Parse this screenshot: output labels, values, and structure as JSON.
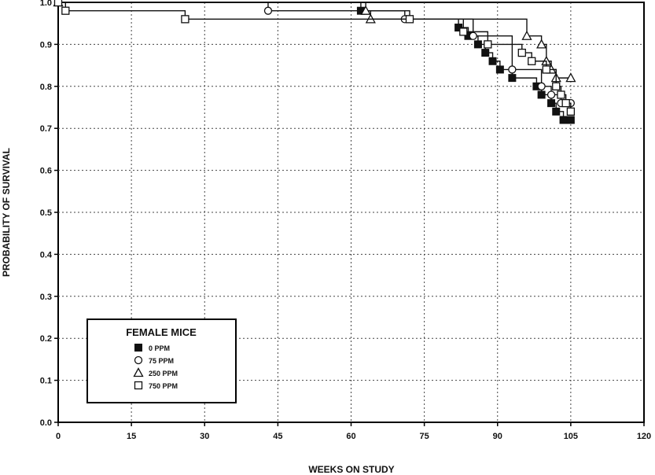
{
  "chart_data": {
    "type": "line",
    "subtype": "step",
    "xlabel": "WEEKS ON STUDY",
    "ylabel": "PROBABILITY OF SURVIVAL",
    "xlim": [
      0,
      120
    ],
    "ylim": [
      0.0,
      1.0
    ],
    "x_ticks": [
      "0",
      "15",
      "30",
      "45",
      "60",
      "75",
      "90",
      "105",
      "120"
    ],
    "y_ticks": [
      "0.0",
      "0.1",
      "0.2",
      "0.3",
      "0.4",
      "0.5",
      "0.6",
      "0.7",
      "0.8",
      "0.9",
      "1.0"
    ],
    "grid": true,
    "legend_title": "FEMALE MICE",
    "legend_position": "lower-left",
    "series": [
      {
        "name": "0 PPM",
        "marker": "filled-square",
        "points": [
          [
            0,
            1.0
          ],
          [
            62,
            0.98
          ],
          [
            72,
            0.96
          ],
          [
            82,
            0.94
          ],
          [
            84,
            0.92
          ],
          [
            86,
            0.9
          ],
          [
            87.5,
            0.88
          ],
          [
            89,
            0.86
          ],
          [
            90.5,
            0.84
          ],
          [
            93,
            0.82
          ],
          [
            98,
            0.8
          ],
          [
            99,
            0.78
          ],
          [
            101,
            0.76
          ],
          [
            102,
            0.74
          ],
          [
            103.5,
            0.72
          ],
          [
            105,
            0.72
          ]
        ]
      },
      {
        "name": "75 PPM",
        "marker": "open-circle",
        "points": [
          [
            0,
            1.0
          ],
          [
            43,
            0.98
          ],
          [
            71,
            0.96
          ],
          [
            85,
            0.92
          ],
          [
            93,
            0.84
          ],
          [
            99,
            0.8
          ],
          [
            101,
            0.78
          ],
          [
            103,
            0.76
          ],
          [
            105,
            0.76
          ]
        ]
      },
      {
        "name": "250 PPM",
        "marker": "open-triangle",
        "points": [
          [
            0,
            1.0
          ],
          [
            63,
            0.98
          ],
          [
            64,
            0.96
          ],
          [
            96,
            0.92
          ],
          [
            99,
            0.9
          ],
          [
            100,
            0.86
          ],
          [
            101,
            0.84
          ],
          [
            102,
            0.82
          ],
          [
            105,
            0.82
          ]
        ]
      },
      {
        "name": "750 PPM",
        "marker": "open-square",
        "points": [
          [
            0,
            1.0
          ],
          [
            1.5,
            0.98
          ],
          [
            26,
            0.96
          ],
          [
            72,
            0.96
          ],
          [
            83,
            0.93
          ],
          [
            88,
            0.9
          ],
          [
            95,
            0.88
          ],
          [
            97,
            0.86
          ],
          [
            100,
            0.84
          ],
          [
            102,
            0.8
          ],
          [
            103,
            0.78
          ],
          [
            104,
            0.76
          ],
          [
            105,
            0.74
          ]
        ]
      }
    ]
  }
}
